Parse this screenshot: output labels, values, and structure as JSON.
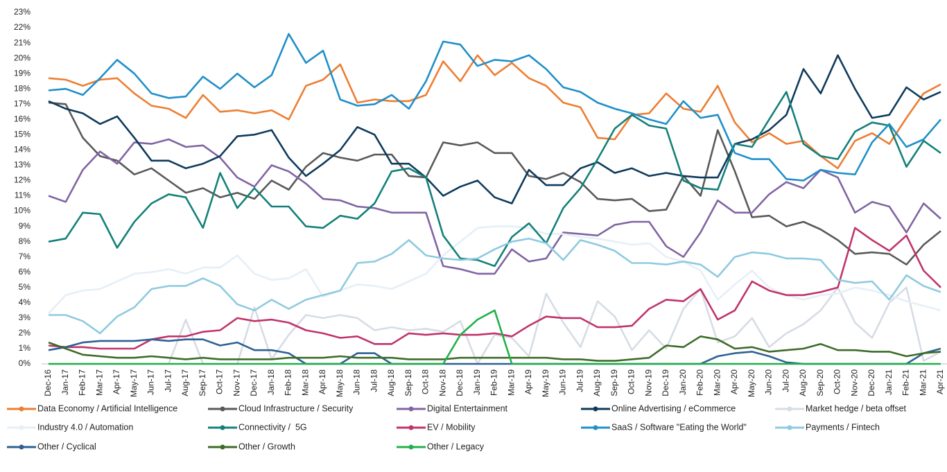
{
  "chart_data": {
    "type": "line",
    "categories": [
      "Dec-16",
      "Jan-17",
      "Feb-17",
      "Mar-17",
      "Apr-17",
      "May-17",
      "Jun-17",
      "Jul-17",
      "Aug-17",
      "Sep-17",
      "Oct-17",
      "Nov-17",
      "Dec-17",
      "Jan-18",
      "Feb-18",
      "Mar-18",
      "Apr-18",
      "May-18",
      "Jun-18",
      "Jul-18",
      "Aug-18",
      "Sep-18",
      "Oct-18",
      "Nov-18",
      "Dec-18",
      "Jan-19",
      "Feb-19",
      "Mar-19",
      "Apr-19",
      "May-19",
      "Jun-19",
      "Jul-19",
      "Aug-19",
      "Sep-19",
      "Oct-19",
      "Nov-19",
      "Dec-19",
      "Jan-20",
      "Feb-20",
      "Mar-20",
      "Apr-20",
      "May-20",
      "Jun-20",
      "Jul-20",
      "Aug-20",
      "Sep-20",
      "Oct-20",
      "Nov-20",
      "Dec-20",
      "Jan-21",
      "Feb-21",
      "Mar-21",
      "Apr-21"
    ],
    "ylim": [
      0,
      23
    ],
    "yticks": [
      {
        "value": 0,
        "label": "0%"
      },
      {
        "value": 1,
        "label": "1%"
      },
      {
        "value": 2,
        "label": "2%"
      },
      {
        "value": 3,
        "label": "3%"
      },
      {
        "value": 4,
        "label": "4%"
      },
      {
        "value": 5,
        "label": "5%"
      },
      {
        "value": 6,
        "label": "6%"
      },
      {
        "value": 7,
        "label": "7%"
      },
      {
        "value": 8,
        "label": "8%"
      },
      {
        "value": 9,
        "label": "9%"
      },
      {
        "value": 10,
        "label": "10%"
      },
      {
        "value": 11,
        "label": "11%"
      },
      {
        "value": 12,
        "label": "12%"
      },
      {
        "value": 13,
        "label": "13%"
      },
      {
        "value": 14,
        "label": "14%"
      },
      {
        "value": 15,
        "label": "15%"
      },
      {
        "value": 16,
        "label": "16%"
      },
      {
        "value": 17,
        "label": "17%"
      },
      {
        "value": 18,
        "label": "18%"
      },
      {
        "value": 19,
        "label": "19%"
      },
      {
        "value": 20,
        "label": "20%"
      },
      {
        "value": 21,
        "label": "21%"
      },
      {
        "value": 22,
        "label": "22%"
      },
      {
        "value": 23,
        "label": "23%"
      }
    ],
    "grid": false,
    "legend": "bottom",
    "series": [
      {
        "name": "Data Economy / Artificial Intelligence",
        "color": "#ed7d31",
        "values": [
          18.7,
          18.6,
          18.2,
          18.6,
          18.7,
          17.7,
          16.9,
          16.7,
          16.1,
          17.6,
          16.5,
          16.6,
          16.4,
          16.6,
          16.0,
          18.2,
          18.6,
          19.6,
          17.1,
          17.3,
          17.2,
          17.2,
          17.6,
          19.8,
          18.5,
          20.2,
          18.9,
          19.7,
          18.7,
          18.2,
          17.1,
          16.8,
          14.8,
          14.7,
          16.3,
          16.4,
          17.7,
          16.7,
          16.5,
          18.2,
          15.8,
          14.5,
          15.1,
          14.4,
          14.6,
          13.6,
          12.8,
          14.6,
          15.1,
          14.4,
          16.1,
          17.7,
          18.3
        ]
      },
      {
        "name": "Cloud Infrastructure / Security",
        "color": "#595959",
        "values": [
          17.1,
          17.0,
          14.8,
          13.6,
          13.3,
          12.4,
          12.8,
          12.0,
          11.2,
          11.5,
          10.9,
          11.2,
          10.8,
          12.0,
          11.4,
          12.9,
          13.8,
          13.5,
          13.3,
          13.7,
          13.7,
          12.3,
          12.2,
          14.5,
          14.3,
          14.5,
          13.8,
          13.8,
          12.3,
          12.1,
          12.5,
          11.9,
          10.8,
          10.7,
          10.8,
          10.0,
          10.1,
          12.3,
          11.0,
          15.3,
          12.6,
          9.6,
          9.7,
          9.0,
          9.3,
          8.8,
          8.1,
          7.2,
          7.3,
          7.2,
          6.5,
          7.8,
          8.7
        ]
      },
      {
        "name": "Digital Entertainment",
        "color": "#8064a2",
        "values": [
          11.0,
          10.6,
          12.7,
          13.9,
          13.1,
          14.5,
          14.4,
          14.7,
          14.2,
          14.3,
          13.5,
          12.2,
          11.6,
          13.0,
          12.6,
          11.8,
          10.8,
          10.7,
          10.3,
          10.2,
          9.9,
          9.9,
          9.9,
          6.4,
          6.2,
          5.9,
          5.9,
          7.5,
          6.7,
          6.9,
          8.6,
          8.5,
          8.4,
          9.1,
          9.3,
          9.3,
          7.7,
          7.0,
          8.6,
          10.7,
          9.9,
          9.9,
          11.1,
          11.9,
          11.5,
          12.7,
          12.2,
          9.9,
          10.6,
          10.3,
          8.6,
          10.5,
          9.5
        ]
      },
      {
        "name": "Online Advertising / eCommerce",
        "color": "#0e3a5c",
        "values": [
          17.2,
          16.7,
          16.4,
          15.7,
          16.2,
          14.8,
          13.3,
          13.3,
          12.8,
          13.1,
          13.6,
          14.9,
          15.0,
          15.3,
          13.5,
          12.3,
          13.1,
          14.0,
          15.5,
          15.0,
          13.1,
          13.1,
          12.2,
          11.0,
          11.6,
          12.0,
          10.9,
          10.5,
          12.7,
          11.7,
          11.7,
          12.8,
          13.2,
          12.5,
          12.8,
          12.3,
          12.5,
          12.3,
          12.2,
          12.2,
          14.4,
          14.7,
          15.3,
          16.3,
          19.3,
          17.7,
          20.2,
          18.0,
          16.1,
          16.3,
          18.1,
          17.3,
          17.8
        ]
      },
      {
        "name": "Market hedge / beta offset",
        "color": "#d6dce5",
        "values": [
          0,
          0,
          0,
          0,
          0,
          0,
          0,
          0,
          2.9,
          0,
          0,
          0,
          3.7,
          0.3,
          1.9,
          3.2,
          3.0,
          3.2,
          3.0,
          2.2,
          2.4,
          2.2,
          2.3,
          2.1,
          2.8,
          0,
          1.9,
          1.7,
          0.5,
          4.6,
          2.7,
          1.1,
          4.1,
          3.1,
          0.9,
          2.2,
          1.0,
          3.6,
          4.9,
          1.4,
          1.8,
          3.0,
          1.1,
          2.0,
          2.6,
          3.5,
          5.0,
          2.7,
          1.7,
          4.0,
          5.0,
          0.2,
          0.8
        ]
      },
      {
        "name": "Industry 4.0 / Automation",
        "color": "#e6eff7",
        "values": [
          3.3,
          4.5,
          4.8,
          4.9,
          5.4,
          5.9,
          6.0,
          6.2,
          5.9,
          6.3,
          6.3,
          7.1,
          5.9,
          5.5,
          5.6,
          6.2,
          4.4,
          4.8,
          5.2,
          5.1,
          4.9,
          5.4,
          5.9,
          7.1,
          8.0,
          8.9,
          9.0,
          9.0,
          8.9,
          8.5,
          8.5,
          8.3,
          8.2,
          8.0,
          7.8,
          7.9,
          7.0,
          6.7,
          6.1,
          4.2,
          5.2,
          6.1,
          5.0,
          4.5,
          4.2,
          4.5,
          4.6,
          5.0,
          4.8,
          4.5,
          4.1,
          3.8,
          3.5
        ]
      },
      {
        "name": "Connectivity /  5G",
        "color": "#138079",
        "values": [
          8.0,
          8.2,
          9.9,
          9.8,
          7.6,
          9.3,
          10.5,
          11.1,
          10.9,
          8.9,
          12.5,
          10.2,
          11.5,
          10.3,
          10.3,
          9.0,
          8.9,
          9.7,
          9.5,
          10.5,
          12.6,
          12.8,
          12.2,
          8.4,
          6.9,
          6.8,
          6.4,
          8.3,
          9.2,
          7.9,
          10.2,
          11.5,
          13.4,
          15.4,
          16.3,
          15.6,
          15.4,
          12.0,
          11.5,
          11.4,
          14.4,
          14.2,
          16.0,
          17.8,
          14.4,
          13.6,
          13.4,
          15.2,
          15.8,
          15.6,
          12.9,
          14.6,
          13.8
        ]
      },
      {
        "name": "EV / Mobility",
        "color": "#c0336b",
        "values": [
          1.2,
          1.1,
          1.1,
          1.0,
          1.0,
          1.0,
          1.6,
          1.8,
          1.8,
          2.1,
          2.2,
          3.0,
          2.8,
          2.9,
          2.7,
          2.2,
          2.0,
          1.7,
          1.8,
          1.3,
          1.3,
          2.0,
          1.9,
          2.0,
          1.9,
          1.9,
          2.0,
          1.8,
          2.5,
          3.1,
          3.0,
          3.0,
          2.4,
          2.4,
          2.5,
          3.6,
          4.2,
          4.1,
          4.9,
          2.9,
          3.5,
          5.4,
          4.8,
          4.5,
          4.5,
          4.7,
          5.0,
          8.9,
          8.1,
          7.4,
          8.4,
          6.1,
          5.0
        ]
      },
      {
        "name": "SaaS / Software \"Eating the World\"",
        "color": "#1f8fc9",
        "values": [
          17.9,
          18.0,
          17.6,
          18.7,
          19.9,
          19.0,
          17.7,
          17.4,
          17.5,
          18.8,
          18.0,
          19.0,
          18.1,
          18.9,
          21.6,
          19.7,
          20.5,
          17.3,
          16.9,
          17.0,
          17.6,
          16.7,
          18.5,
          21.1,
          20.9,
          19.5,
          19.9,
          19.8,
          20.2,
          19.3,
          18.1,
          17.8,
          17.1,
          16.7,
          16.4,
          16.0,
          15.7,
          17.2,
          16.1,
          16.3,
          13.8,
          13.4,
          13.4,
          12.1,
          12.0,
          12.7,
          12.5,
          12.4,
          14.5,
          15.7,
          14.2,
          14.7,
          16.0
        ]
      },
      {
        "name": "Payments / Fintech",
        "color": "#8ecae0",
        "values": [
          3.2,
          3.2,
          2.8,
          2.0,
          3.1,
          3.7,
          4.9,
          5.1,
          5.1,
          5.6,
          5.1,
          3.9,
          3.5,
          4.2,
          3.6,
          4.2,
          4.5,
          4.8,
          6.6,
          6.7,
          7.2,
          8.1,
          7.1,
          6.9,
          6.8,
          6.9,
          7.5,
          8.0,
          8.2,
          7.9,
          6.8,
          8.1,
          7.8,
          7.4,
          6.6,
          6.6,
          6.5,
          6.7,
          6.5,
          5.7,
          7.0,
          7.3,
          7.2,
          6.9,
          6.9,
          6.8,
          5.5,
          5.3,
          5.4,
          4.2,
          5.8,
          5.1,
          4.7
        ]
      },
      {
        "name": "Other / Cyclical",
        "color": "#2e6193",
        "values": [
          0.9,
          1.1,
          1.4,
          1.5,
          1.5,
          1.5,
          1.6,
          1.5,
          1.6,
          1.6,
          1.2,
          1.4,
          0.9,
          0.9,
          0.7,
          0,
          0,
          0,
          0.7,
          0.7,
          0,
          0,
          0,
          0,
          0,
          0,
          0,
          0,
          0,
          0,
          0,
          0,
          0,
          0,
          0,
          0,
          0,
          0,
          0,
          0.5,
          0.7,
          0.8,
          0.5,
          0.1,
          0,
          0,
          0,
          0,
          0,
          0,
          0,
          0.7,
          1.0
        ]
      },
      {
        "name": "Other / Growth",
        "color": "#3d6b28",
        "values": [
          1.4,
          1.0,
          0.6,
          0.5,
          0.4,
          0.4,
          0.5,
          0.4,
          0.3,
          0.4,
          0.3,
          0.3,
          0.3,
          0.3,
          0.4,
          0.4,
          0.4,
          0.5,
          0.4,
          0.4,
          0.4,
          0.3,
          0.3,
          0.3,
          0.4,
          0.4,
          0.4,
          0.4,
          0.4,
          0.4,
          0.3,
          0.3,
          0.2,
          0.2,
          0.3,
          0.4,
          1.2,
          1.1,
          1.8,
          1.6,
          1.0,
          1.1,
          0.8,
          0.9,
          1.0,
          1.3,
          0.9,
          0.9,
          0.8,
          0.8,
          0.5,
          0.7,
          0.8
        ]
      },
      {
        "name": "Other / Legacy",
        "color": "#21b04b",
        "values": [
          0,
          0,
          0,
          0,
          0,
          0,
          0,
          0,
          0,
          0,
          0,
          0,
          0,
          0,
          0,
          0,
          0,
          0,
          0,
          0,
          0,
          0,
          0,
          0,
          1.9,
          2.9,
          3.5,
          0,
          0,
          0,
          0,
          0,
          0,
          0,
          0,
          0,
          0,
          0,
          0,
          0,
          0,
          0,
          0,
          0,
          0,
          0,
          0,
          0,
          0,
          0,
          0,
          0,
          0
        ]
      }
    ]
  }
}
